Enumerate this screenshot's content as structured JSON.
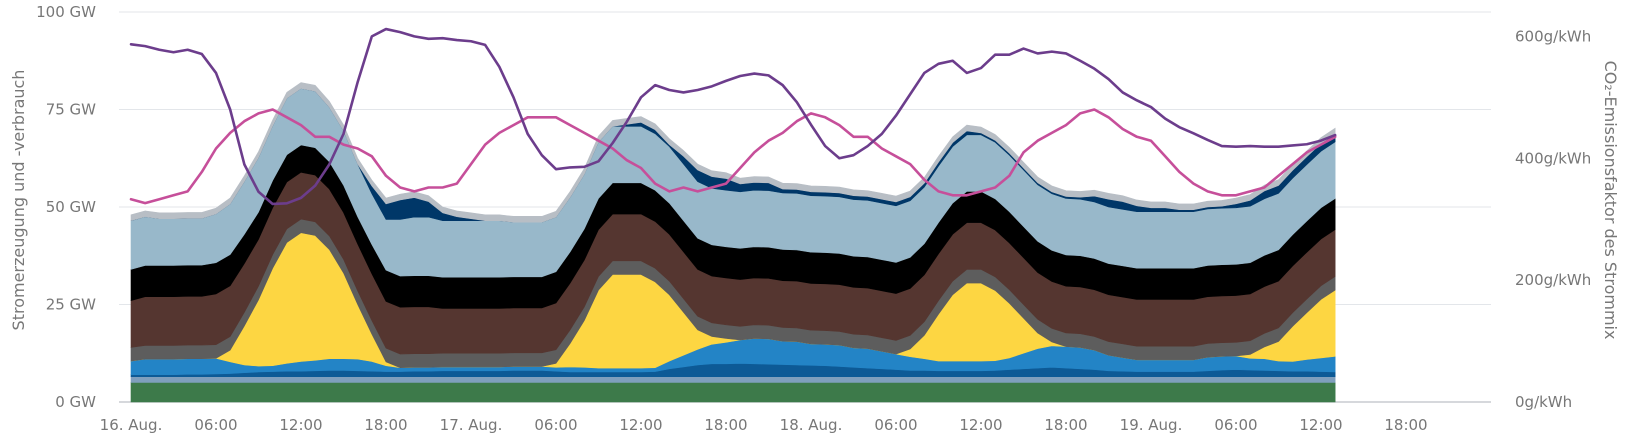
{
  "chart_data": {
    "type": "area",
    "title": "",
    "y_left_label": "Stromerzeugung und -verbrauch",
    "y_right_label": "CO₂-Emissionsfaktor des Strommix",
    "y_left_ticks": [
      "0 GW",
      "25 GW",
      "50 GW",
      "75 GW",
      "100 GW"
    ],
    "y_left_tick_values": [
      0,
      25,
      50,
      75,
      100
    ],
    "y_left_range": [
      0,
      100
    ],
    "y_right_ticks": [
      "0g/kWh",
      "200g/kWh",
      "400g/kWh",
      "600g/kWh"
    ],
    "y_right_tick_values": [
      0,
      200,
      400,
      600
    ],
    "y_right_range": [
      0,
      640
    ],
    "x_range_hours": [
      0,
      96
    ],
    "x_ticks": [
      "16. Aug.",
      "06:00",
      "12:00",
      "18:00",
      "17. Aug.",
      "06:00",
      "12:00",
      "18:00",
      "18. Aug.",
      "06:00",
      "12:00",
      "18:00",
      "19. Aug.",
      "06:00",
      "12:00",
      "18:00"
    ],
    "x_tick_hours": [
      0,
      6,
      12,
      18,
      24,
      30,
      36,
      42,
      48,
      54,
      60,
      66,
      72,
      78,
      84,
      90
    ],
    "grid": true,
    "legend": "none",
    "x_hours": [
      0,
      1,
      2,
      3,
      4,
      5,
      6,
      7,
      8,
      9,
      10,
      11,
      12,
      13,
      14,
      15,
      16,
      17,
      18,
      19,
      20,
      21,
      22,
      23,
      24,
      25,
      26,
      27,
      28,
      29,
      30,
      31,
      32,
      33,
      34,
      35,
      36,
      37,
      38,
      39,
      40,
      41,
      42,
      43,
      44,
      45,
      46,
      47,
      48,
      49,
      50,
      51,
      52,
      53,
      54,
      55,
      56,
      57,
      58,
      59,
      60,
      61,
      62,
      63,
      64,
      65,
      66,
      67,
      68,
      69,
      70,
      71,
      72,
      73,
      74,
      75,
      76,
      77,
      78,
      79,
      80,
      81,
      82,
      83,
      84,
      85
    ],
    "stacked_series": [
      {
        "color": "#3d7a4a",
        "values": [
          5,
          5,
          5,
          5,
          5,
          5,
          5,
          5,
          5,
          5,
          5,
          5,
          5,
          5,
          5,
          5,
          5,
          5,
          5,
          5,
          5,
          5,
          5,
          5,
          5,
          5,
          5,
          5,
          5,
          5,
          5,
          5,
          5,
          5,
          5,
          5,
          5,
          5,
          5,
          5,
          5,
          5,
          5,
          5,
          5,
          5,
          5,
          5,
          5,
          5,
          5,
          5,
          5,
          5,
          5,
          5,
          5,
          5,
          5,
          5,
          5,
          5,
          5,
          5,
          5,
          5,
          5,
          5,
          5,
          5,
          5,
          5,
          5,
          5,
          5,
          5,
          5,
          5,
          5,
          5,
          5,
          5,
          5,
          5,
          5,
          5
        ]
      },
      {
        "color": "#7f9fbd",
        "values": [
          1.5,
          1.5,
          1.5,
          1.5,
          1.5,
          1.5,
          1.5,
          1.5,
          1.5,
          1.5,
          1.5,
          1.5,
          1.5,
          1.5,
          1.5,
          1.5,
          1.5,
          1.5,
          1.5,
          1.5,
          1.5,
          1.5,
          1.5,
          1.5,
          1.5,
          1.5,
          1.5,
          1.5,
          1.5,
          1.5,
          1.5,
          1.5,
          1.5,
          1.5,
          1.5,
          1.5,
          1.5,
          1.5,
          1.5,
          1.5,
          1.5,
          1.5,
          1.5,
          1.5,
          1.5,
          1.5,
          1.5,
          1.5,
          1.5,
          1.5,
          1.5,
          1.5,
          1.5,
          1.5,
          1.5,
          1.5,
          1.5,
          1.5,
          1.5,
          1.5,
          1.5,
          1.5,
          1.5,
          1.5,
          1.5,
          1.5,
          1.5,
          1.5,
          1.5,
          1.5,
          1.5,
          1.5,
          1.5,
          1.5,
          1.5,
          1.5,
          1.5,
          1.5,
          1.5,
          1.5,
          1.5,
          1.5,
          1.5,
          1.5,
          1.5,
          1.5
        ]
      },
      {
        "color": "#0d5a96",
        "values": [
          0.5,
          0.5,
          0.5,
          0.5,
          0.6,
          0.6,
          0.7,
          0.8,
          1,
          1.2,
          1.3,
          1.4,
          1.4,
          1.5,
          1.6,
          1.6,
          1.5,
          1.4,
          1.3,
          1.3,
          1.4,
          1.4,
          1.5,
          1.5,
          1.5,
          1.5,
          1.5,
          1.6,
          1.6,
          1.6,
          1.4,
          1.2,
          1.2,
          1.2,
          1.2,
          1.2,
          1.2,
          1.3,
          2,
          2.5,
          3,
          3.3,
          3.3,
          3.4,
          3.3,
          3.2,
          3.1,
          3,
          2.9,
          2.8,
          2.6,
          2.4,
          2.2,
          2,
          1.8,
          1.6,
          1.6,
          1.5,
          1.5,
          1.5,
          1.5,
          1.6,
          1.8,
          2,
          2.2,
          2.4,
          2.2,
          2,
          1.8,
          1.5,
          1.4,
          1.3,
          1.3,
          1.3,
          1.3,
          1.3,
          1.5,
          1.7,
          1.8,
          1.7,
          1.6,
          1.5,
          1.4,
          1.4,
          1.3,
          1.2
        ]
      },
      {
        "color": "#2384c6",
        "values": [
          3.5,
          4,
          4,
          4,
          4,
          4,
          4,
          3,
          2,
          1.5,
          1.5,
          2,
          2.5,
          2.7,
          3,
          3,
          3,
          2.5,
          1.5,
          1,
          1,
          1,
          1,
          1,
          1,
          1,
          1,
          1,
          1,
          1,
          1,
          1.3,
          1.2,
          1,
          1,
          1,
          1,
          1,
          2,
          3,
          4,
          5,
          5.5,
          6,
          6.5,
          6.5,
          6,
          6,
          5.5,
          5.5,
          5.5,
          5,
          5,
          4.5,
          4,
          3.5,
          3,
          2.5,
          2.5,
          2.5,
          2.5,
          2.5,
          3,
          4,
          5,
          5.5,
          5.5,
          5.5,
          5,
          4,
          3.5,
          3,
          3,
          3,
          3,
          3,
          3.5,
          3.5,
          3.5,
          3,
          3,
          2.5,
          2.5,
          3,
          3.5,
          4
        ]
      },
      {
        "color": "#fdd642",
        "values": [
          0,
          0,
          0,
          0,
          0,
          0,
          0,
          3,
          10,
          17,
          25,
          31,
          33,
          32,
          28,
          22,
          14,
          7,
          1,
          0,
          0,
          0,
          0,
          0,
          0,
          0,
          0,
          0,
          0,
          0,
          1,
          6,
          12,
          20,
          24,
          24,
          24,
          22,
          17,
          11,
          5,
          2,
          1,
          0,
          0,
          0,
          0,
          0,
          0,
          0,
          0,
          0,
          0,
          0,
          0,
          2,
          6,
          12,
          17,
          20,
          20,
          18,
          14,
          9,
          4,
          1,
          0,
          0,
          0,
          0,
          0,
          0,
          0,
          0,
          0,
          0,
          0,
          0,
          0,
          1,
          3,
          5,
          9,
          12,
          15,
          17
        ]
      },
      {
        "color": "#5d5d5d",
        "values": [
          3.5,
          3.5,
          3.5,
          3.5,
          3.5,
          3.5,
          3.5,
          3.5,
          3.5,
          3.5,
          3.5,
          3.5,
          3.5,
          3.5,
          3.5,
          3.5,
          3.5,
          3.5,
          3.5,
          3.5,
          3.5,
          3.5,
          3.5,
          3.5,
          3.5,
          3.5,
          3.5,
          3.5,
          3.5,
          3.5,
          3.5,
          3.5,
          3.5,
          3.5,
          3.5,
          3.5,
          3.5,
          3.5,
          3.5,
          3.5,
          3.5,
          3.5,
          3.5,
          3.5,
          3.5,
          3.5,
          3.5,
          3.5,
          3.5,
          3.5,
          3.5,
          3.5,
          3.5,
          3.5,
          3.5,
          3.5,
          3.5,
          3.5,
          3.5,
          3.5,
          3.5,
          3.5,
          3.5,
          3.5,
          3.5,
          3.5,
          3.5,
          3.5,
          3.5,
          3.5,
          3.5,
          3.5,
          3.5,
          3.5,
          3.5,
          3.5,
          3.5,
          3.5,
          3.5,
          3.5,
          3.5,
          3.5,
          3.5,
          3.5,
          3.5,
          3.5
        ]
      },
      {
        "color": "#553630",
        "values": [
          12,
          12.5,
          12.5,
          12.5,
          12.5,
          12.5,
          13,
          13,
          12.5,
          12,
          12,
          12,
          12,
          12,
          12,
          12,
          12,
          12,
          12,
          12,
          12,
          12,
          11.5,
          11.5,
          11.5,
          11.5,
          11.5,
          11.5,
          11.5,
          11.5,
          12,
          12,
          12,
          12,
          12,
          12,
          12,
          12,
          12,
          12,
          12,
          12,
          12,
          12,
          12,
          12,
          12,
          12,
          12,
          12,
          12,
          12,
          12,
          12,
          12,
          12,
          12,
          12,
          12,
          12,
          12,
          12,
          12,
          12,
          12,
          12,
          12,
          12,
          12,
          12,
          12,
          12,
          12,
          12,
          12,
          12,
          12,
          12,
          12,
          12,
          12,
          12,
          12,
          12,
          12,
          12
        ]
      },
      {
        "color": "#000000",
        "values": [
          8,
          8,
          8,
          8,
          8,
          8,
          8,
          8,
          7.5,
          7,
          7,
          7,
          7,
          7,
          7,
          7,
          7,
          7.5,
          8,
          8,
          8,
          8,
          8,
          8,
          8,
          8,
          8,
          8,
          8,
          8,
          8,
          8,
          8,
          8,
          8,
          8,
          8,
          8,
          8,
          8,
          8,
          8,
          8,
          8,
          8,
          8,
          8,
          8,
          8,
          8,
          8,
          8,
          8,
          8,
          8,
          8,
          8,
          8,
          8,
          8,
          8,
          8,
          8,
          8,
          8,
          8,
          8,
          8,
          8,
          8,
          8,
          8,
          8,
          8,
          8,
          8,
          8,
          8,
          8,
          8,
          8,
          8,
          8,
          8,
          8,
          8
        ]
      },
      {
        "color": "#98b8ca",
        "values": [
          12.5,
          12.5,
          12,
          12,
          12,
          12,
          12.5,
          13,
          13.5,
          14,
          14,
          14.5,
          14.5,
          14.5,
          14,
          14,
          13.5,
          13,
          13,
          14.5,
          15,
          15,
          14.5,
          14.5,
          14.5,
          14.5,
          14.5,
          14,
          14,
          14,
          14,
          14,
          14,
          14.5,
          14.5,
          14.5,
          14.5,
          14.5,
          14.5,
          14.5,
          14.5,
          14.5,
          14.5,
          14.5,
          14.5,
          14.5,
          14.5,
          14.5,
          14.5,
          14.5,
          14.5,
          14.5,
          14.5,
          14.5,
          14.5,
          14.5,
          14.5,
          14.5,
          14.5,
          14.5,
          14.5,
          14.5,
          14.5,
          14.5,
          14.5,
          14.5,
          14.5,
          14.5,
          14.5,
          14.5,
          14.5,
          14.5,
          14.5,
          14.5,
          14.5,
          14.5,
          14.5,
          14.5,
          14.5,
          14.5,
          14.5,
          14.5,
          14.5,
          14.5,
          14.5,
          14.5
        ]
      },
      {
        "color": "#003768",
        "values": [
          0,
          0,
          0,
          0,
          0,
          0,
          0,
          0,
          0,
          0,
          0,
          0,
          0,
          0,
          0,
          0,
          0,
          2,
          4,
          5,
          5,
          4,
          2,
          1,
          0.5,
          0,
          0,
          0,
          0,
          0,
          0,
          0,
          0,
          0,
          0,
          0.5,
          1,
          1,
          0.5,
          2,
          3,
          3,
          3,
          2,
          2,
          2,
          1,
          1,
          1,
          1,
          1,
          1,
          1,
          1,
          1,
          1,
          1,
          1,
          1,
          1,
          0.5,
          0.5,
          0.5,
          0.5,
          0.5,
          0.5,
          0.5,
          0.5,
          1.5,
          2,
          2,
          1.5,
          1,
          1,
          0.5,
          0.5,
          0.5,
          0.5,
          1,
          1.5,
          2,
          2,
          2,
          2,
          2,
          2
        ]
      },
      {
        "color": "#b8bec5",
        "values": [
          1.5,
          1.5,
          1.5,
          1.5,
          1.5,
          1.5,
          1.5,
          1.5,
          1.5,
          1.5,
          1.5,
          1.5,
          1.5,
          1.5,
          1.5,
          1.5,
          1.5,
          1.5,
          1.5,
          1.5,
          1.5,
          1.5,
          1.5,
          1.5,
          1.5,
          1.5,
          1.5,
          1.5,
          1.5,
          1.5,
          1.5,
          1.5,
          1.5,
          1.5,
          1.5,
          1.5,
          1.5,
          1.5,
          1.5,
          1.5,
          1.5,
          1.5,
          1.5,
          1.5,
          1.5,
          1.5,
          1.5,
          1.5,
          1.5,
          1.5,
          1.5,
          1.5,
          1.5,
          1.5,
          1.5,
          1.5,
          1.5,
          1.5,
          1.5,
          1.5,
          1.5,
          1.5,
          1.5,
          1.5,
          1.5,
          1.5,
          1.5,
          1.5,
          1.5,
          1.5,
          1.5,
          1.5,
          1.5,
          1.5,
          1.5,
          1.5,
          1.5,
          1.5,
          1.5,
          1.5,
          1.5,
          1.5,
          1.5,
          1.5,
          1.5,
          1.5
        ]
      }
    ],
    "load_line": {
      "color": "#c64f9a",
      "axis": "left",
      "values": [
        52,
        51,
        52,
        53,
        54,
        59,
        65,
        69,
        72,
        74,
        75,
        73,
        71,
        68,
        68,
        66,
        65,
        63,
        58,
        55,
        54,
        55,
        55,
        56,
        61,
        66,
        69,
        71,
        73,
        73,
        73,
        71,
        69,
        67,
        65,
        62,
        60,
        56,
        54,
        55,
        54,
        55,
        56,
        60,
        64,
        67,
        69,
        72,
        74,
        73,
        71,
        68,
        68,
        65,
        63,
        61,
        57,
        54,
        53,
        53,
        54,
        55,
        58,
        64,
        67,
        69,
        71,
        74,
        75,
        73,
        70,
        68,
        67,
        63,
        59,
        56,
        54,
        53,
        53,
        54,
        55,
        58,
        61,
        64,
        66,
        68
      ]
    },
    "co2_line": {
      "color": "#6c3d8c",
      "axis": "right",
      "values": [
        587,
        584,
        578,
        574,
        578,
        571,
        540,
        480,
        390,
        345,
        325,
        326,
        335,
        355,
        390,
        440,
        525,
        600,
        612,
        607,
        600,
        596,
        597,
        594,
        592,
        586,
        550,
        500,
        440,
        405,
        382,
        385,
        386,
        395,
        425,
        460,
        500,
        520,
        512,
        508,
        512,
        518,
        527,
        535,
        539,
        536,
        520,
        492,
        455,
        420,
        400,
        405,
        420,
        440,
        470,
        505,
        540,
        555,
        560,
        540,
        548,
        570,
        570,
        580,
        572,
        575,
        572,
        560,
        547,
        530,
        508,
        495,
        484,
        465,
        451,
        441,
        430,
        420,
        419,
        420,
        419,
        419,
        421,
        423,
        429,
        438
      ]
    }
  }
}
